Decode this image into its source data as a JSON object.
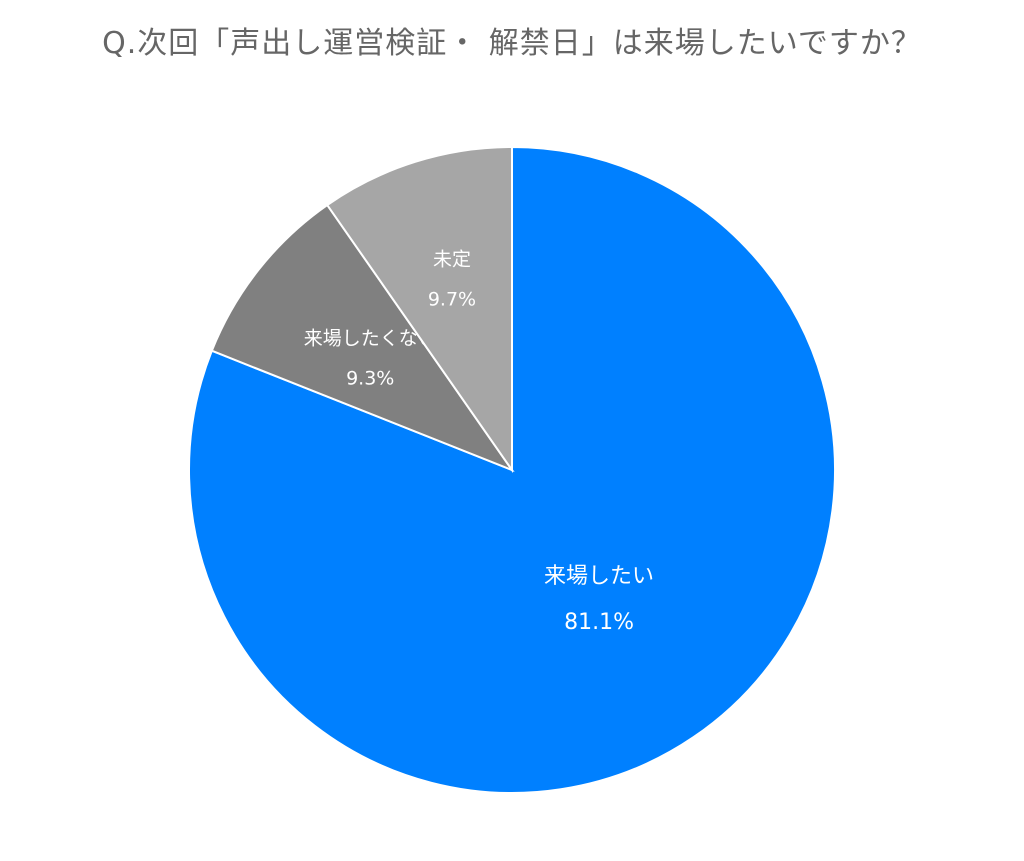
{
  "chart_data": {
    "type": "pie",
    "title": "Q.次回「声出し運営検証・ 解禁日」は来場したいですか？",
    "slices": [
      {
        "label": "来場したい",
        "value": 81.1,
        "display": "81.1%",
        "color": "#0080ff"
      },
      {
        "label": "来場したくない",
        "value": 9.3,
        "display": "9.3%",
        "color": "#808080"
      },
      {
        "label": "未定",
        "value": 9.7,
        "display": "9.7%",
        "color": "#a6a6a6"
      }
    ]
  }
}
